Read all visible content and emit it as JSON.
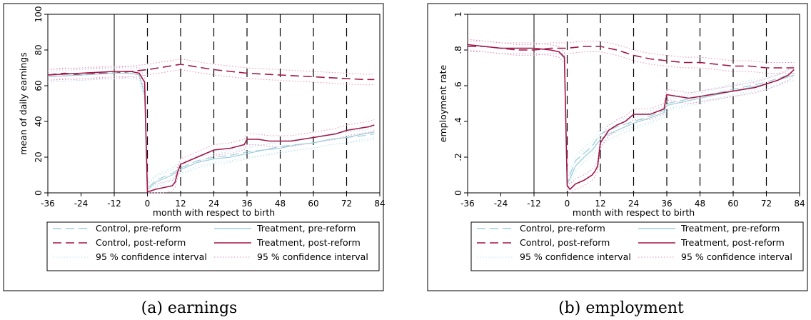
{
  "figure": {
    "captions": [
      "(a) earnings",
      "(b) employment"
    ]
  },
  "legend": {
    "entries": [
      {
        "label": "Control, pre-reform",
        "color": "#9fcfdc",
        "dash": "long"
      },
      {
        "label": "Treatment, pre-reform",
        "color": "#9fcfdc",
        "dash": "solid"
      },
      {
        "label": "Control, post-reform",
        "color": "#a31547",
        "dash": "long"
      },
      {
        "label": "Treatment, post-reform",
        "color": "#a31547",
        "dash": "solid"
      },
      {
        "label": "95 % confidence interval",
        "color": "#bde3ee",
        "dash": "dot"
      },
      {
        "label": "95 % confidence interval",
        "color": "#e98fbc",
        "dash": "dot"
      }
    ]
  },
  "chart_data": [
    {
      "type": "line",
      "xlabel": "month with respect to birth",
      "ylabel": "mean of daily earnings",
      "xlim": [
        -36,
        84
      ],
      "ylim": [
        0,
        100
      ],
      "xticks": [
        -36,
        -24,
        -12,
        0,
        12,
        24,
        36,
        48,
        60,
        72,
        84
      ],
      "yticks": [
        0,
        20,
        40,
        60,
        80,
        100
      ],
      "ytick_labels": [
        "0",
        "20",
        "40",
        "60",
        "80",
        "100"
      ],
      "vlines": {
        "solid": [
          -12
        ],
        "dashed": [
          0,
          12,
          24,
          36,
          48,
          60,
          72
        ]
      },
      "series": [
        {
          "name": "Control, post-reform",
          "x": [
            -36,
            -30,
            -24,
            -18,
            -12,
            -6,
            0,
            6,
            12,
            18,
            24,
            30,
            36,
            42,
            48,
            54,
            60,
            66,
            72,
            78,
            82
          ],
          "y": [
            66,
            67,
            66,
            67,
            67,
            68,
            69,
            70.5,
            72,
            70.5,
            69,
            68,
            67,
            66.5,
            66,
            65.5,
            65,
            64.5,
            64,
            63.5,
            63.5
          ]
        },
        {
          "name": "Control, pre-reform",
          "x": [
            -36,
            -24,
            -12,
            -6,
            -3,
            -1,
            0,
            1,
            3,
            6,
            9,
            12,
            18,
            24,
            30,
            36,
            42,
            48,
            54,
            60,
            66,
            72,
            78,
            82
          ],
          "y": [
            65,
            66,
            67,
            67,
            66,
            55,
            3,
            4,
            7,
            9,
            11,
            14,
            18,
            20,
            21,
            23,
            24,
            26,
            27,
            28,
            30,
            31,
            32,
            33
          ]
        },
        {
          "name": "Treatment, pre-reform",
          "x": [
            -36,
            -24,
            -12,
            -6,
            -3,
            -1,
            0,
            1,
            3,
            6,
            9,
            12,
            18,
            24,
            30,
            36,
            42,
            48,
            54,
            60,
            66,
            72,
            78,
            82
          ],
          "y": [
            65,
            66,
            67,
            67,
            66,
            55,
            2,
            3,
            6,
            8,
            10,
            13,
            17,
            19,
            20,
            22,
            24,
            25,
            27,
            28,
            30,
            31,
            33,
            34
          ]
        },
        {
          "name": "Treatment, post-reform",
          "x": [
            -36,
            -24,
            -12,
            -6,
            -3,
            -1,
            0,
            1,
            3,
            6,
            9,
            10,
            11,
            12,
            15,
            18,
            21,
            24,
            30,
            35,
            36,
            40,
            44,
            48,
            52,
            56,
            60,
            64,
            68,
            72,
            76,
            80,
            82
          ],
          "y": [
            66,
            67,
            68,
            68,
            67,
            62,
            0.5,
            1,
            2,
            3,
            4,
            6,
            12,
            16,
            18,
            20,
            22,
            24,
            25,
            27,
            30,
            30,
            29,
            29,
            29,
            30,
            31,
            32,
            33,
            35,
            36,
            37,
            38
          ]
        }
      ]
    },
    {
      "type": "line",
      "xlabel": "month with respect to birth",
      "ylabel": "employment rate",
      "xlim": [
        -36,
        84
      ],
      "ylim": [
        0,
        1
      ],
      "xticks": [
        -36,
        -24,
        -12,
        0,
        12,
        24,
        36,
        48,
        60,
        72,
        84
      ],
      "yticks": [
        0,
        0.2,
        0.4,
        0.6,
        0.8,
        1
      ],
      "ytick_labels": [
        "0",
        ".2",
        ".4",
        ".6",
        ".8",
        "1"
      ],
      "vlines": {
        "solid": [
          -12
        ],
        "dashed": [
          0,
          12,
          24,
          36,
          48,
          60,
          72
        ]
      },
      "series": [
        {
          "name": "Control, post-reform",
          "x": [
            -36,
            -30,
            -24,
            -18,
            -12,
            -6,
            0,
            6,
            12,
            18,
            24,
            30,
            36,
            42,
            48,
            54,
            60,
            66,
            72,
            78,
            82
          ],
          "y": [
            0.82,
            0.82,
            0.81,
            0.8,
            0.8,
            0.81,
            0.81,
            0.82,
            0.82,
            0.8,
            0.77,
            0.75,
            0.74,
            0.73,
            0.73,
            0.72,
            0.71,
            0.71,
            0.7,
            0.7,
            0.7
          ]
        },
        {
          "name": "Control, pre-reform",
          "x": [
            -36,
            -24,
            -12,
            -6,
            -3,
            -1,
            0,
            1,
            3,
            6,
            9,
            12,
            15,
            18,
            24,
            30,
            35,
            36,
            42,
            48,
            54,
            60,
            66,
            72,
            78,
            82
          ],
          "y": [
            0.83,
            0.81,
            0.81,
            0.8,
            0.79,
            0.75,
            0.06,
            0.1,
            0.18,
            0.22,
            0.26,
            0.33,
            0.35,
            0.37,
            0.4,
            0.43,
            0.46,
            0.5,
            0.52,
            0.54,
            0.56,
            0.58,
            0.6,
            0.62,
            0.65,
            0.67
          ]
        },
        {
          "name": "Treatment, pre-reform",
          "x": [
            -36,
            -24,
            -12,
            -6,
            -3,
            -1,
            0,
            1,
            3,
            6,
            9,
            12,
            15,
            18,
            24,
            30,
            35,
            36,
            42,
            48,
            54,
            60,
            66,
            72,
            78,
            82
          ],
          "y": [
            0.83,
            0.81,
            0.81,
            0.8,
            0.79,
            0.75,
            0.05,
            0.08,
            0.15,
            0.2,
            0.24,
            0.3,
            0.33,
            0.35,
            0.39,
            0.42,
            0.45,
            0.49,
            0.51,
            0.53,
            0.55,
            0.57,
            0.59,
            0.61,
            0.64,
            0.66
          ]
        },
        {
          "name": "Treatment, post-reform",
          "x": [
            -36,
            -24,
            -12,
            -6,
            -3,
            -1,
            0,
            1,
            3,
            6,
            9,
            10,
            11,
            12,
            15,
            18,
            21,
            24,
            30,
            35,
            36,
            40,
            44,
            48,
            52,
            56,
            60,
            64,
            68,
            72,
            76,
            80,
            82
          ],
          "y": [
            0.83,
            0.81,
            0.81,
            0.8,
            0.79,
            0.76,
            0.04,
            0.02,
            0.05,
            0.07,
            0.1,
            0.12,
            0.15,
            0.28,
            0.35,
            0.38,
            0.4,
            0.44,
            0.44,
            0.47,
            0.55,
            0.54,
            0.53,
            0.54,
            0.55,
            0.56,
            0.57,
            0.58,
            0.59,
            0.61,
            0.63,
            0.66,
            0.69
          ]
        }
      ]
    }
  ]
}
